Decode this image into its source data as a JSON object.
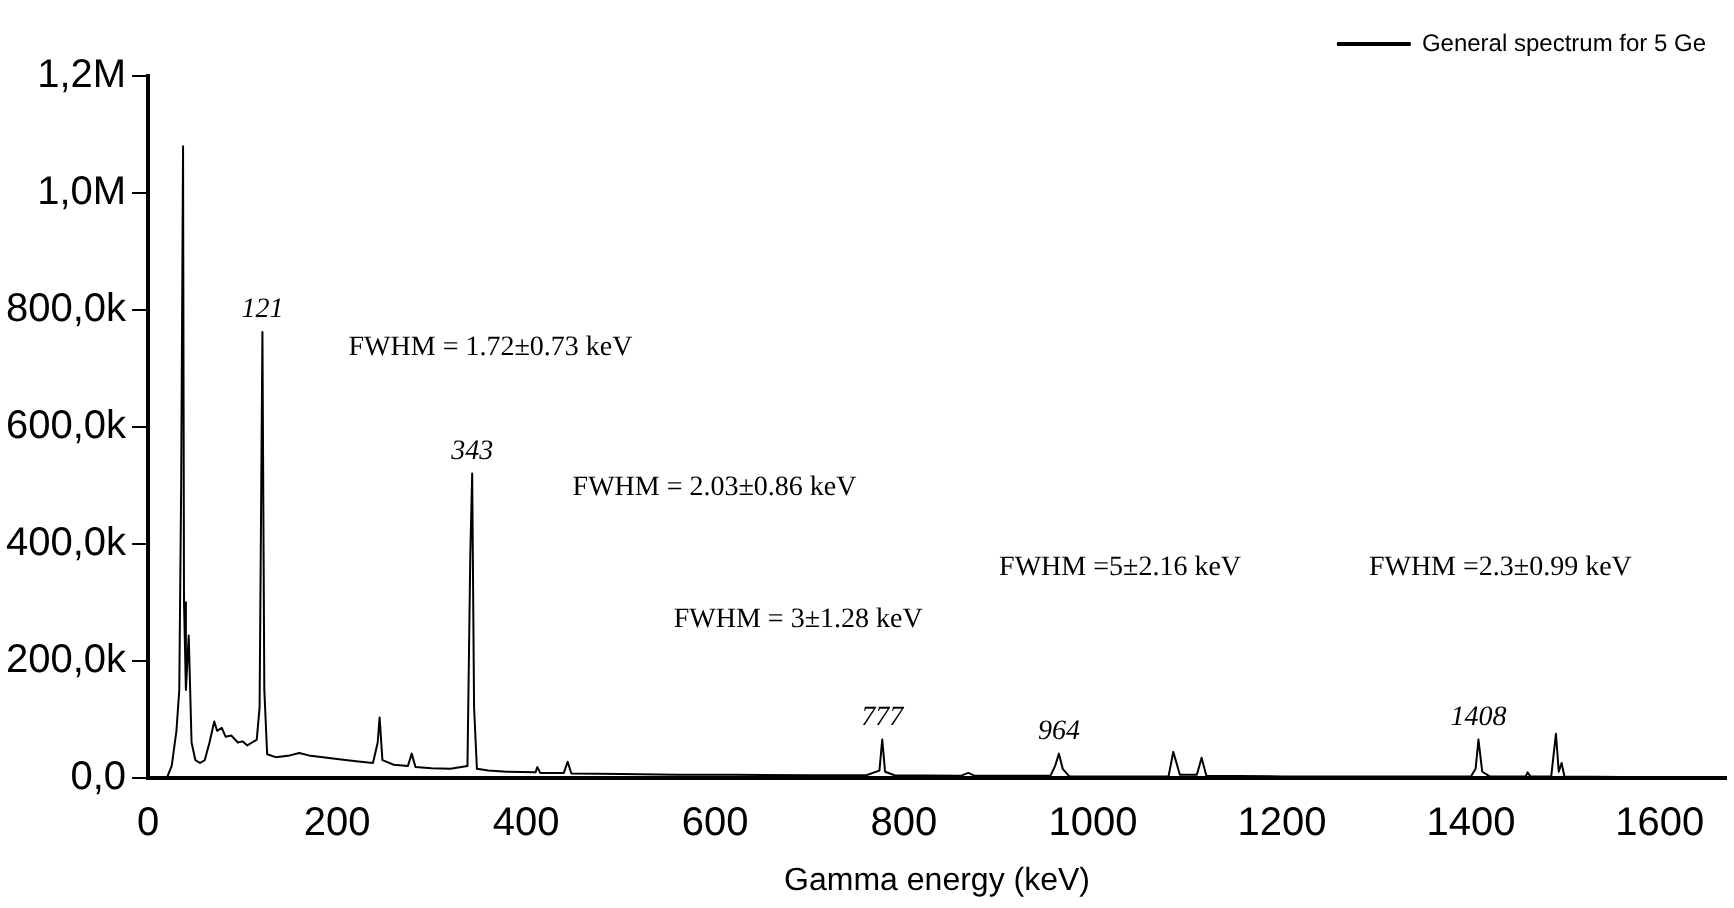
{
  "chart_data": {
    "type": "line",
    "xlabel": "Gamma energy (keV)",
    "legend": "top right",
    "grid": false,
    "marker": "none",
    "line_style": "solid",
    "xlim": [
      0,
      1670
    ],
    "xticks": [
      0,
      200,
      400,
      600,
      800,
      1000,
      1200,
      1400,
      1600
    ],
    "ylim": [
      0,
      1200000
    ],
    "yticks": [
      {
        "value": 0,
        "label": "0,0"
      },
      {
        "value": 200000,
        "label": "200,0k"
      },
      {
        "value": 400000,
        "label": "400,0k"
      },
      {
        "value": 600000,
        "label": "600,0k"
      },
      {
        "value": 800000,
        "label": "800,0k"
      },
      {
        "value": 1000000,
        "label": "1,0M"
      },
      {
        "value": 1200000,
        "label": "1,2M"
      }
    ],
    "series": [
      {
        "name": "General spectrum for 5 Ge",
        "color": "#000000",
        "x": [
          0,
          20,
          25,
          30,
          33,
          35,
          37,
          38,
          40,
          43,
          46,
          50,
          55,
          60,
          65,
          70,
          73,
          78,
          82,
          88,
          95,
          100,
          105,
          110,
          115,
          118,
          121,
          123,
          126,
          135,
          150,
          160,
          170,
          185,
          200,
          220,
          238,
          243,
          245,
          248,
          260,
          275,
          279,
          283,
          300,
          320,
          338,
          341,
          343,
          345,
          348,
          360,
          380,
          410,
          412,
          415,
          440,
          444,
          448,
          500,
          560,
          620,
          700,
          760,
          774,
          777,
          780,
          790,
          860,
          868,
          875,
          955,
          960,
          964,
          968,
          975,
          1080,
          1085,
          1092,
          1110,
          1115,
          1120,
          1200,
          1400,
          1405,
          1408,
          1412,
          1420,
          1458,
          1460,
          1463,
          1485,
          1490,
          1493,
          1496,
          1499,
          1560,
          1670
        ],
        "values": [
          0,
          0,
          20000,
          80000,
          150000,
          500000,
          1080000,
          300000,
          150000,
          243000,
          60000,
          30000,
          25000,
          30000,
          60000,
          96000,
          80000,
          85000,
          70000,
          72000,
          60000,
          62000,
          55000,
          60000,
          65000,
          120000,
          762000,
          150000,
          40000,
          35000,
          38000,
          42000,
          38000,
          35000,
          32000,
          28000,
          25000,
          60000,
          103000,
          30000,
          22000,
          20000,
          41000,
          18000,
          16000,
          15000,
          20000,
          380000,
          520000,
          120000,
          15000,
          12000,
          10000,
          9000,
          18000,
          8000,
          8000,
          27000,
          7000,
          6000,
          5000,
          5000,
          4000,
          4000,
          12000,
          65000,
          10000,
          4000,
          3000,
          8000,
          3000,
          3000,
          20000,
          41000,
          15000,
          2000,
          2000,
          44000,
          5000,
          5000,
          34000,
          3000,
          2000,
          2000,
          15000,
          65000,
          10000,
          2000,
          2000,
          9000,
          2000,
          2000,
          75000,
          10000,
          25000,
          2000,
          1000,
          1000
        ]
      }
    ],
    "annotations": [
      {
        "text": "121",
        "x": 121,
        "y": 762000
      },
      {
        "text": "343",
        "x": 343,
        "y": 520000
      },
      {
        "text": "777",
        "x": 777,
        "y": 65000
      },
      {
        "text": "964",
        "x": 964,
        "y": 41000
      },
      {
        "text": "1408",
        "x": 1408,
        "y": 65000
      },
      "FWHM = 1.72±0.73 keV",
      "FWHM = 2.03±0.86 keV",
      "FWHM = 3±1.28 keV",
      "FWHM =5±2.16 keV",
      "FWHM =2.3±0.99 keV"
    ]
  }
}
